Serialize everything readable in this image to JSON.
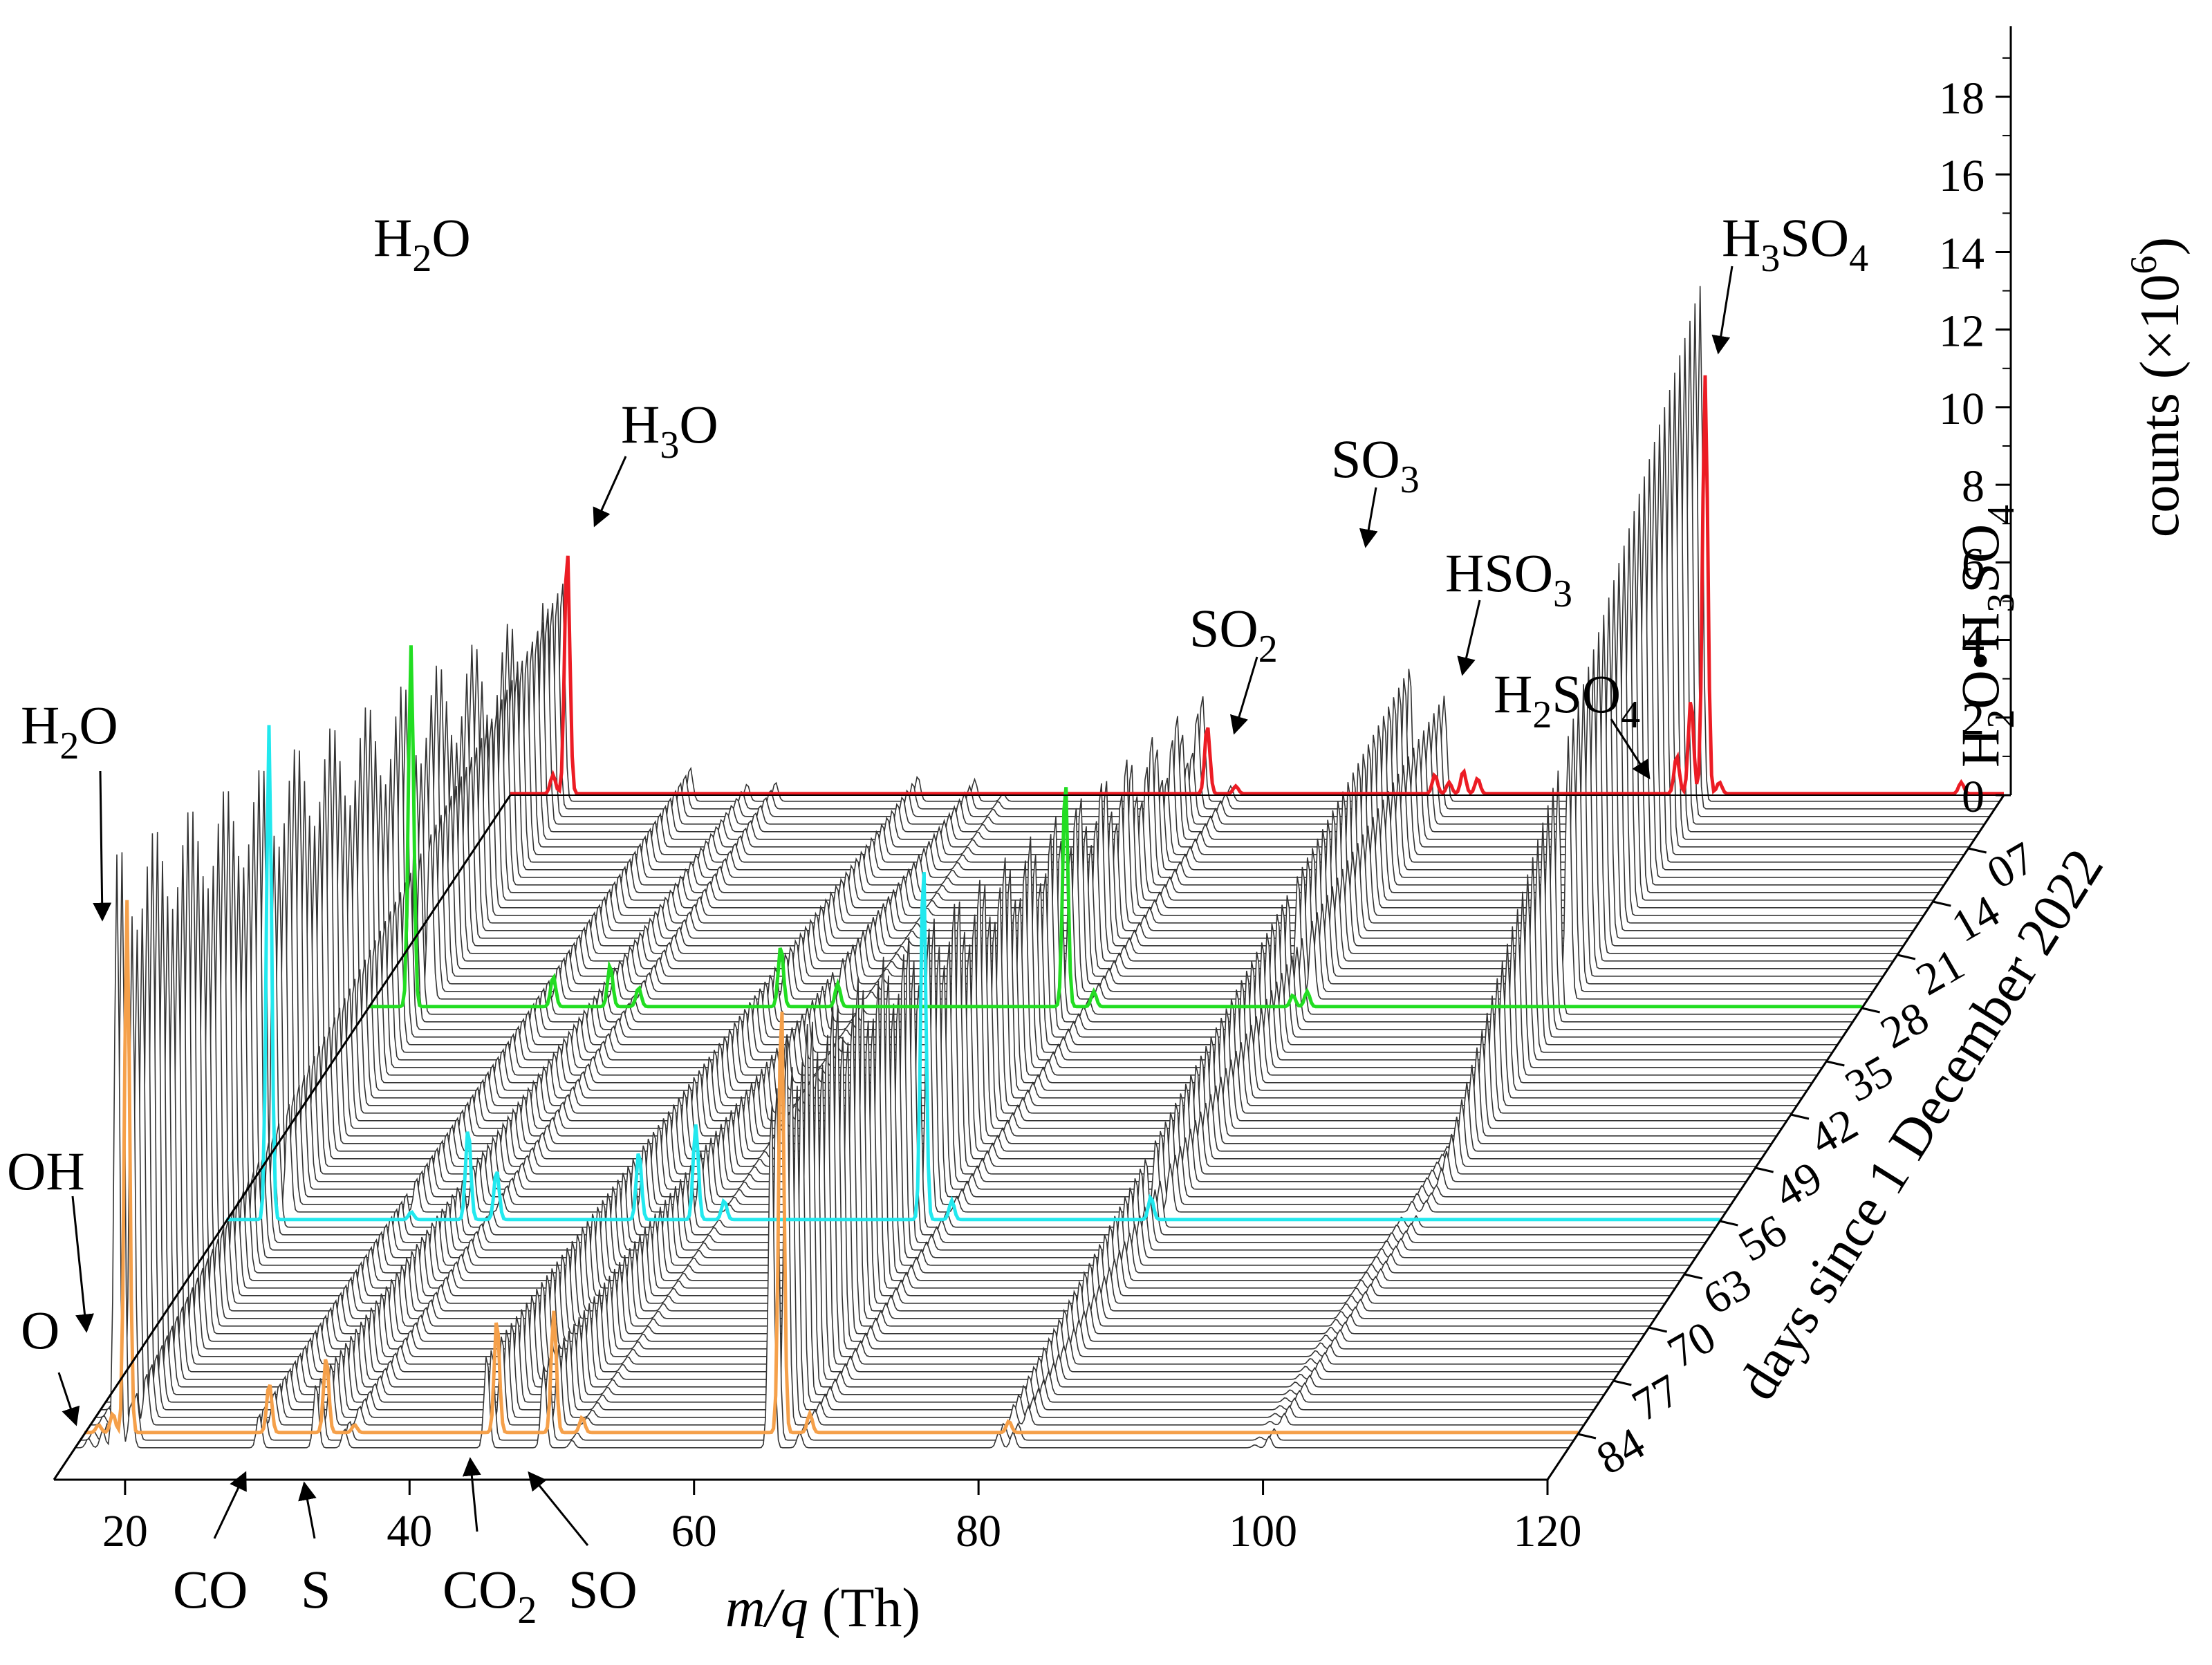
{
  "chart_data": {
    "type": "waterfall-line",
    "title": "",
    "x_axis": {
      "label_italic": "m/q",
      "label_unit": " (Th)",
      "range": [
        15,
        120
      ],
      "ticks": [
        "20",
        "40",
        "60",
        "80",
        "100",
        "120"
      ],
      "tick_values": [
        20,
        40,
        60,
        80,
        100,
        120
      ]
    },
    "y_axis": {
      "label_main": "counts (×10",
      "label_exp": "6",
      "label_close": ")",
      "range": [
        0,
        19
      ],
      "ticks": [
        "0",
        "2",
        "4",
        "6",
        "8",
        "10",
        "12",
        "14",
        "16",
        "18"
      ],
      "tick_values": [
        0,
        2,
        4,
        6,
        8,
        10,
        12,
        14,
        16,
        18
      ]
    },
    "z_axis": {
      "label": "days since 1 December 2022",
      "range": [
        0,
        90
      ],
      "ticks": [
        "07",
        "14",
        "21",
        "28",
        "35",
        "42",
        "49",
        "56",
        "63",
        "70",
        "77",
        "84"
      ],
      "tick_values": [
        7,
        14,
        21,
        28,
        35,
        42,
        49,
        56,
        63,
        70,
        77,
        84
      ]
    },
    "peaks": [
      {
        "mz": 16,
        "name": "O",
        "amp": 0.25
      },
      {
        "mz": 17,
        "name": "OH",
        "amp": 0.45
      },
      {
        "mz": 18,
        "name": "H2O",
        "amp": 14.5
      },
      {
        "mz": 19,
        "name": "H3O",
        "amp": 6.5
      },
      {
        "mz": 28,
        "name": "CO",
        "amp": 0.9
      },
      {
        "mz": 32,
        "name": "S",
        "amp": 1.1
      },
      {
        "mz": 34,
        "name": "",
        "amp": 0.5
      },
      {
        "mz": 44,
        "name": "CO2",
        "amp": 1.6
      },
      {
        "mz": 48,
        "name": "SO",
        "amp": 1.4
      },
      {
        "mz": 50,
        "name": "",
        "amp": 0.2
      },
      {
        "mz": 64,
        "name": "SO2",
        "amp": 6.0
      },
      {
        "mz": 66,
        "name": "",
        "amp": 0.4
      },
      {
        "mz": 80,
        "name": "SO3",
        "amp": 0.5
      },
      {
        "mz": 81,
        "name": "HSO3",
        "amp": 0.3
      },
      {
        "mz": 98,
        "name": "H2SO4",
        "amp": 0.05
      },
      {
        "mz": 99,
        "name": "H3SO4",
        "amp": 0.05
      }
    ],
    "highlighted_scans": [
      {
        "day": 0,
        "color": "#ec1c24",
        "amps": {
          "18": 0.5,
          "19": 6.5,
          "64": 1.8,
          "66": 0.2,
          "80": 0.5,
          "81": 0.3,
          "82": 0.6,
          "83": 0.4,
          "97": 1.0,
          "98": 2.5,
          "99": 11.0,
          "100": 0.3,
          "117": 0.3
        }
      },
      {
        "day": 28,
        "color": "#22dd22",
        "amps": {
          "18": 9.5,
          "28": 0.8,
          "32": 1.1,
          "34": 0.5,
          "44": 1.6,
          "48": 0.6,
          "64": 6.0,
          "66": 0.4,
          "80": 0.3,
          "81": 0.4
        }
      },
      {
        "day": 56,
        "color": "#22e8ee",
        "amps": {
          "18": 13.0,
          "28": 0.2,
          "32": 2.4,
          "34": 1.3,
          "44": 1.8,
          "48": 2.5,
          "50": 0.5,
          "64": 9.5,
          "66": 0.5,
          "80": 0.6
        }
      },
      {
        "day": 84,
        "color": "#f5a04a",
        "amps": {
          "16": 0.2,
          "17": 0.5,
          "18": 14.0,
          "28": 1.3,
          "32": 2.0,
          "34": 0.2,
          "44": 3.0,
          "48": 3.2,
          "50": 0.4,
          "64": 11.5,
          "66": 0.5,
          "80": 0.3
        }
      }
    ],
    "annotations": [
      {
        "text": "H2O",
        "parts": [
          "H",
          "2",
          "O",
          "",
          ""
        ]
      },
      {
        "text": "H2O",
        "parts": [
          "H",
          "2",
          "O",
          "",
          ""
        ]
      },
      {
        "text": "H3O",
        "parts": [
          "H",
          "3",
          "O",
          "",
          ""
        ]
      },
      {
        "text": "OH",
        "parts": [
          "OH",
          "",
          "",
          "",
          ""
        ]
      },
      {
        "text": "O",
        "parts": [
          "O",
          "",
          "",
          "",
          ""
        ]
      },
      {
        "text": "CO",
        "parts": [
          "CO",
          "",
          "",
          "",
          ""
        ]
      },
      {
        "text": "S",
        "parts": [
          "S",
          "",
          "",
          "",
          ""
        ]
      },
      {
        "text": "CO2",
        "parts": [
          "CO",
          "2",
          "",
          "",
          ""
        ]
      },
      {
        "text": "SO",
        "parts": [
          "SO",
          "",
          "",
          "",
          ""
        ]
      },
      {
        "text": "SO2",
        "parts": [
          "SO",
          "2",
          "",
          "",
          ""
        ]
      },
      {
        "text": "SO3",
        "parts": [
          "SO",
          "3",
          "",
          "",
          ""
        ]
      },
      {
        "text": "HSO3",
        "parts": [
          "HSO",
          "3",
          "",
          "",
          ""
        ]
      },
      {
        "text": "H2SO4",
        "parts": [
          "H",
          "2",
          "SO",
          "4",
          ""
        ]
      },
      {
        "text": "H3SO4",
        "parts": [
          "H",
          "3",
          "SO",
          "4",
          ""
        ]
      },
      {
        "text": "H2O•H3SO4",
        "parts": [
          "H",
          "2",
          "O•H",
          "3",
          "SO"
        ],
        "last_sub": "4"
      }
    ],
    "grid": false,
    "legend": "none"
  }
}
